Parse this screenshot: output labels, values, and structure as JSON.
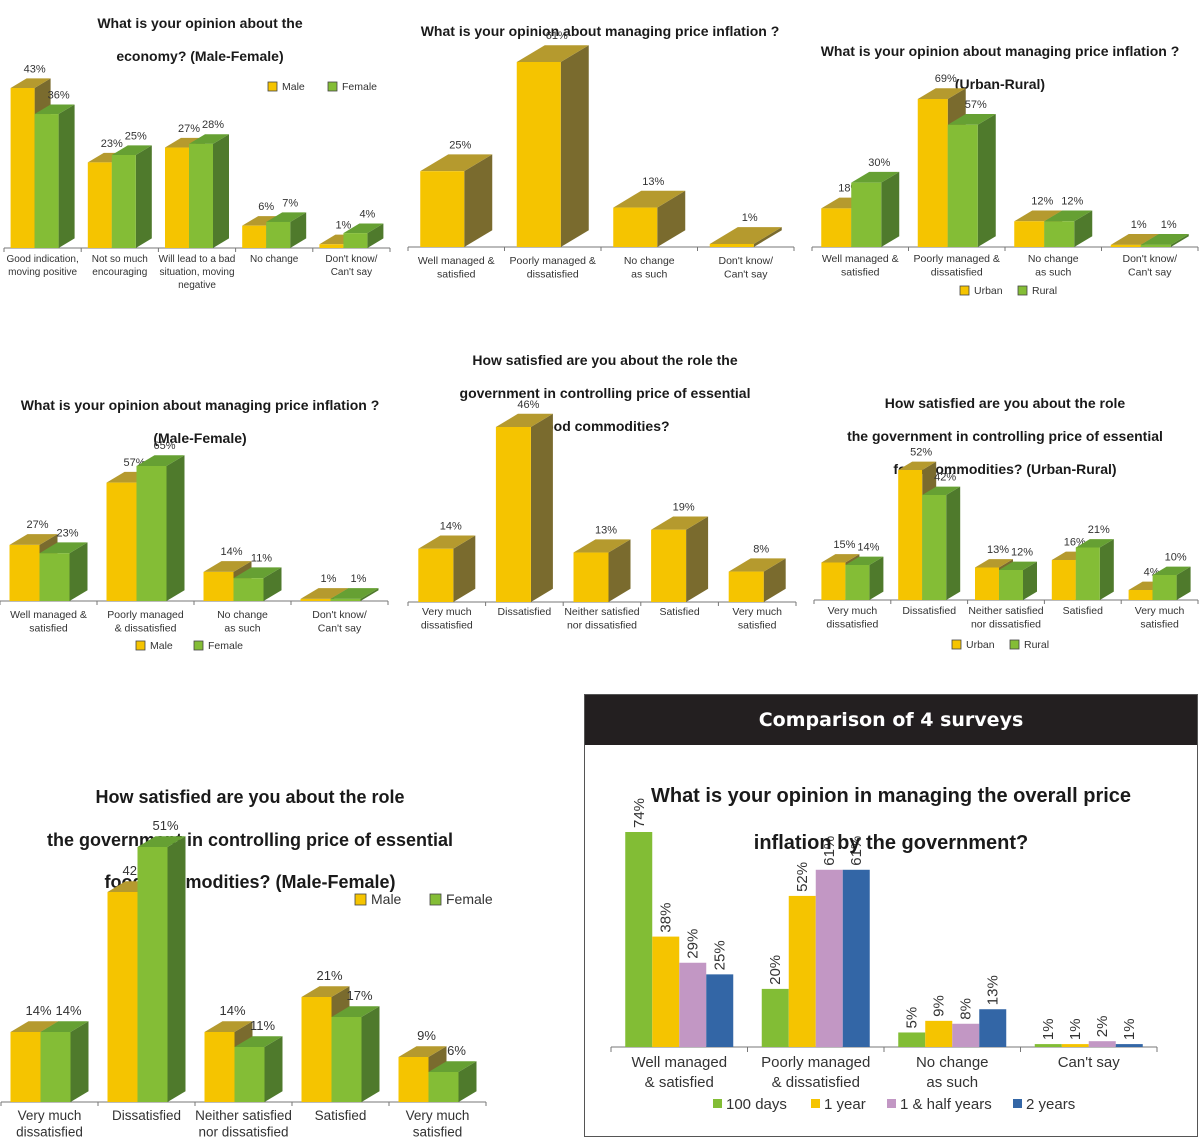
{
  "colors": {
    "male": "#f5c400",
    "male_top": "#b59a2e",
    "male_side": "#7a6b2e",
    "female": "#84bd36",
    "female_top": "#66a033",
    "female_side": "#4f7a2c",
    "s100days": "#82bd35",
    "s1year": "#f5c400",
    "s1half": "#c297c4",
    "s2years": "#3366a6"
  },
  "comparison_header": "Comparison of 4 surveys",
  "chart_data": [
    {
      "id": "economy_mf",
      "type": "bar",
      "title": [
        "What is your opinion about the",
        "economy? (Male-Female)"
      ],
      "categories": [
        [
          "Good indication,",
          "moving positive"
        ],
        [
          "Not so much",
          "encouraging"
        ],
        [
          "Will lead to a bad",
          "situation, moving",
          "negative"
        ],
        [
          "No change"
        ],
        [
          "Don't know/",
          "Can't say"
        ]
      ],
      "series": [
        {
          "name": "Male",
          "values": [
            43,
            23,
            27,
            6,
            1
          ]
        },
        {
          "name": "Female",
          "values": [
            36,
            25,
            28,
            7,
            4
          ]
        }
      ],
      "value_suffix": "%",
      "legend": "top-right",
      "ylim": [
        0,
        50
      ]
    },
    {
      "id": "inflation_overall",
      "type": "bar",
      "title": [
        "What is your opinion about managing price inflation ?"
      ],
      "categories": [
        [
          "Well managed &",
          "satisfied"
        ],
        [
          "Poorly managed &",
          "dissatisfied"
        ],
        [
          "No change",
          "as such"
        ],
        [
          "Don't know/",
          "Can't say"
        ]
      ],
      "series": [
        {
          "name": "All",
          "values": [
            25,
            61,
            13,
            1
          ]
        }
      ],
      "value_suffix": "%",
      "legend": "none",
      "ylim": [
        0,
        70
      ]
    },
    {
      "id": "inflation_ur",
      "type": "bar",
      "title": [
        "What is your opinion about managing price inflation ?",
        "(Urban-Rural)"
      ],
      "categories": [
        [
          "Well managed &",
          "satisfied"
        ],
        [
          "Poorly managed &",
          "dissatisfied"
        ],
        [
          "No change",
          "as such"
        ],
        [
          "Don't know/",
          "Can't say"
        ]
      ],
      "series": [
        {
          "name": "Urban",
          "values": [
            18,
            69,
            12,
            1
          ]
        },
        {
          "name": "Rural",
          "values": [
            30,
            57,
            12,
            1
          ]
        }
      ],
      "value_suffix": "%",
      "legend": "bottom",
      "ylim": [
        0,
        80
      ]
    },
    {
      "id": "inflation_mf",
      "type": "bar",
      "title": [
        "What is your opinion about managing price inflation ?",
        "(Male-Female)"
      ],
      "categories": [
        [
          "Well managed &",
          "satisfied"
        ],
        [
          "Poorly managed",
          "& dissatisfied"
        ],
        [
          "No change",
          "as such"
        ],
        [
          "Don't know/",
          "Can't say"
        ]
      ],
      "series": [
        {
          "name": "Male",
          "values": [
            27,
            57,
            14,
            1
          ]
        },
        {
          "name": "Female",
          "values": [
            23,
            65,
            11,
            1
          ]
        }
      ],
      "value_suffix": "%",
      "legend": "bottom",
      "ylim": [
        0,
        80
      ]
    },
    {
      "id": "food_overall",
      "type": "bar",
      "title": [
        "How satisfied are you about the role the",
        "government in controlling price of essential",
        "food commodities?"
      ],
      "categories": [
        [
          "Very much",
          "dissatisfied"
        ],
        [
          "Dissatisfied"
        ],
        [
          "Neither satisfied",
          "nor dissatisfied"
        ],
        [
          "Satisfied"
        ],
        [
          "Very much",
          "satisfied"
        ]
      ],
      "series": [
        {
          "name": "All",
          "values": [
            14,
            46,
            13,
            19,
            8
          ]
        }
      ],
      "value_suffix": "%",
      "legend": "none",
      "ylim": [
        0,
        55
      ]
    },
    {
      "id": "food_ur",
      "type": "bar",
      "title": [
        "How satisfied are you about the role",
        "the government in controlling price of essential",
        "food commodities? (Urban-Rural)"
      ],
      "categories": [
        [
          "Very much",
          "dissatisfied"
        ],
        [
          "Dissatisfied"
        ],
        [
          "Neither satisfied",
          "nor dissatisfied"
        ],
        [
          "Satisfied"
        ],
        [
          "Very much",
          "satisfied"
        ]
      ],
      "series": [
        {
          "name": "Urban",
          "values": [
            15,
            52,
            13,
            16,
            4
          ]
        },
        {
          "name": "Rural",
          "values": [
            14,
            42,
            12,
            21,
            10
          ]
        }
      ],
      "value_suffix": "%",
      "legend": "bottom",
      "ylim": [
        0,
        60
      ]
    },
    {
      "id": "food_mf",
      "type": "bar",
      "title": [
        "How satisfied are you about the role",
        "the government in controlling price of essential",
        "food commodities? (Male-Female)"
      ],
      "categories": [
        [
          "Very much",
          "dissatisfied"
        ],
        [
          "Dissatisfied"
        ],
        [
          "Neither satisfied",
          "nor dissatisfied"
        ],
        [
          "Satisfied"
        ],
        [
          "Very much",
          "satisfied"
        ]
      ],
      "series": [
        {
          "name": "Male",
          "values": [
            14,
            42,
            14,
            21,
            9
          ]
        },
        {
          "name": "Female",
          "values": [
            14,
            51,
            11,
            17,
            6
          ]
        }
      ],
      "value_suffix": "%",
      "legend": "top-right",
      "ylim": [
        0,
        60
      ]
    },
    {
      "id": "comparison_4_surveys",
      "type": "bar",
      "title": [
        "What is your opinion in managing the overall price",
        "inflation by the government?"
      ],
      "categories": [
        [
          "Well managed",
          "& satisfied"
        ],
        [
          "Poorly managed",
          "& dissatisfied"
        ],
        [
          "No change",
          "as such"
        ],
        [
          "Can't say"
        ]
      ],
      "series": [
        {
          "name": "100 days",
          "values": [
            74,
            20,
            5,
            1
          ]
        },
        {
          "name": "1 year",
          "values": [
            38,
            52,
            9,
            1
          ]
        },
        {
          "name": "1 & half years",
          "values": [
            29,
            61,
            8,
            2
          ]
        },
        {
          "name": "2 years",
          "values": [
            25,
            61,
            13,
            1
          ]
        }
      ],
      "value_suffix": "%",
      "legend": "bottom",
      "ylim": [
        0,
        80
      ]
    }
  ]
}
